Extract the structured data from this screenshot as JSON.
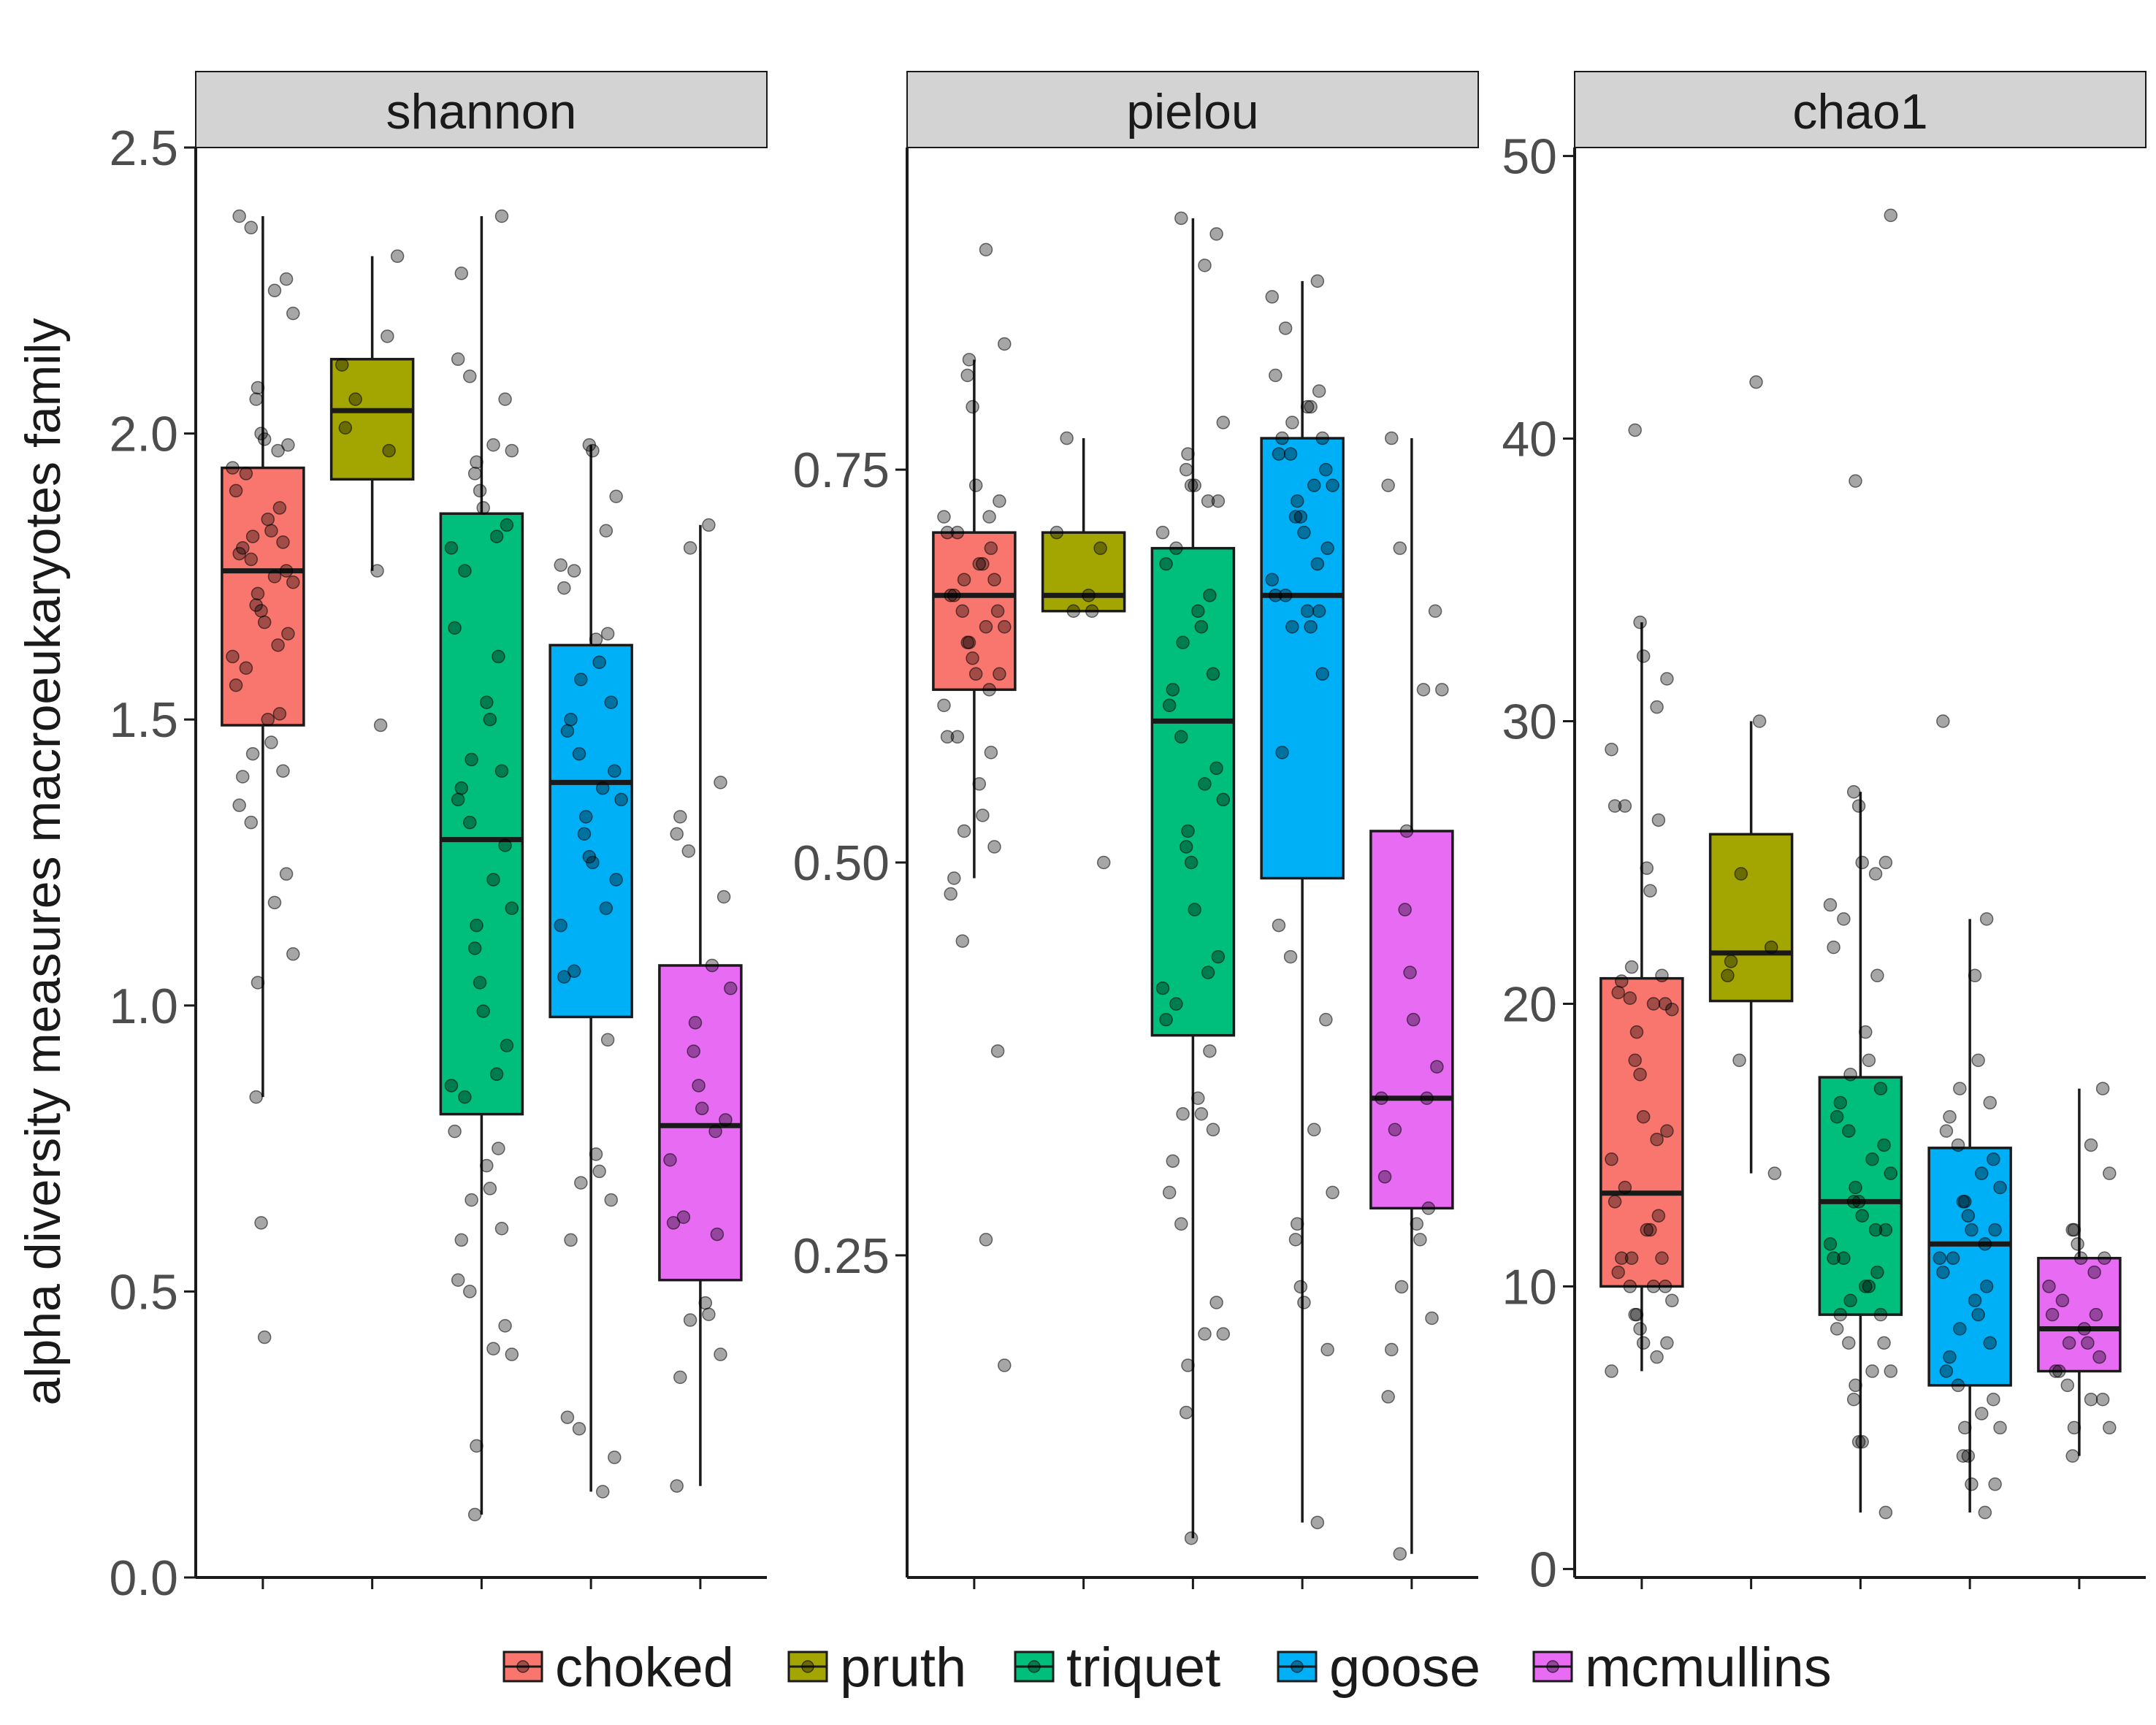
{
  "chart_data": {
    "type": "box",
    "ylabel": "alpha diversity measures macroeukaryotes family",
    "xlabel": "",
    "groups": [
      "choked",
      "pruth",
      "triquet",
      "goose",
      "mcmullins"
    ],
    "colors": {
      "choked": "#F8766D",
      "pruth": "#A3A500",
      "triquet": "#00BF7D",
      "goose": "#00B0F6",
      "mcmullins": "#E76BF3"
    },
    "legend": {
      "position": "bottom",
      "entries": [
        "choked",
        "pruth",
        "triquet",
        "goose",
        "mcmullins"
      ]
    },
    "grid": false,
    "facets": [
      {
        "name": "shannon",
        "ylim": [
          0,
          2.5
        ],
        "yticks": [
          0.0,
          0.5,
          1.0,
          1.5,
          2.0,
          2.5
        ],
        "ytick_labels": [
          "0.0",
          "0.5",
          "1.0",
          "1.5",
          "2.0",
          "2.5"
        ],
        "boxes": [
          {
            "group": "choked",
            "whisker_low": 0.84,
            "q1": 1.49,
            "median": 1.76,
            "q3": 1.94,
            "whisker_high": 2.38,
            "points": [
              2.38,
              2.36,
              2.27,
              2.25,
              2.21,
              2.08,
              2.06,
              2.0,
              1.99,
              1.98,
              1.97,
              1.94,
              1.93,
              1.9,
              1.87,
              1.85,
              1.83,
              1.82,
              1.81,
              1.8,
              1.79,
              1.78,
              1.76,
              1.75,
              1.74,
              1.72,
              1.7,
              1.69,
              1.67,
              1.65,
              1.63,
              1.61,
              1.59,
              1.56,
              1.51,
              1.5,
              1.46,
              1.44,
              1.41,
              1.4,
              1.35,
              1.32,
              1.23,
              1.18,
              1.09,
              1.04,
              0.84,
              0.62,
              0.42
            ]
          },
          {
            "group": "pruth",
            "whisker_low": 1.76,
            "q1": 1.92,
            "median": 2.04,
            "q3": 2.13,
            "whisker_high": 2.31,
            "points": [
              2.31,
              2.17,
              2.12,
              2.06,
              2.01,
              1.97,
              1.76,
              1.49
            ]
          },
          {
            "group": "triquet",
            "whisker_low": 0.11,
            "q1": 0.81,
            "median": 1.29,
            "q3": 1.86,
            "whisker_high": 2.38,
            "points": [
              2.38,
              2.28,
              2.13,
              2.1,
              2.06,
              1.98,
              1.97,
              1.95,
              1.93,
              1.9,
              1.87,
              1.84,
              1.82,
              1.8,
              1.76,
              1.66,
              1.61,
              1.53,
              1.5,
              1.43,
              1.41,
              1.38,
              1.36,
              1.32,
              1.28,
              1.22,
              1.17,
              1.14,
              1.1,
              1.04,
              0.99,
              0.93,
              0.88,
              0.86,
              0.84,
              0.78,
              0.75,
              0.72,
              0.68,
              0.66,
              0.61,
              0.59,
              0.52,
              0.5,
              0.44,
              0.4,
              0.39,
              0.23,
              0.11
            ]
          },
          {
            "group": "goose",
            "whisker_low": 0.15,
            "q1": 0.98,
            "median": 1.39,
            "q3": 1.63,
            "whisker_high": 1.98,
            "points": [
              1.98,
              1.97,
              1.89,
              1.83,
              1.77,
              1.76,
              1.73,
              1.65,
              1.64,
              1.6,
              1.57,
              1.53,
              1.5,
              1.48,
              1.44,
              1.41,
              1.38,
              1.36,
              1.33,
              1.3,
              1.26,
              1.25,
              1.22,
              1.17,
              1.14,
              1.06,
              1.05,
              0.94,
              0.74,
              0.71,
              0.69,
              0.66,
              0.59,
              0.28,
              0.26,
              0.21,
              0.15
            ]
          },
          {
            "group": "mcmullins",
            "whisker_low": 0.16,
            "q1": 0.52,
            "median": 0.79,
            "q3": 1.07,
            "whisker_high": 1.84,
            "points": [
              1.84,
              1.8,
              1.39,
              1.33,
              1.3,
              1.27,
              1.19,
              1.07,
              1.03,
              0.97,
              0.92,
              0.86,
              0.82,
              0.8,
              0.78,
              0.73,
              0.63,
              0.62,
              0.6,
              0.48,
              0.46,
              0.45,
              0.39,
              0.35,
              0.16
            ]
          }
        ]
      },
      {
        "name": "pielou",
        "ylim": [
          0.045,
          0.955
        ],
        "yticks": [
          0.25,
          0.5,
          0.75
        ],
        "ytick_labels": [
          "0.25",
          "0.50",
          "0.75"
        ],
        "boxes": [
          {
            "group": "choked",
            "whisker_low": 0.49,
            "q1": 0.61,
            "median": 0.67,
            "q3": 0.71,
            "whisker_high": 0.82,
            "points": [
              0.89,
              0.83,
              0.82,
              0.81,
              0.79,
              0.74,
              0.73,
              0.72,
              0.72,
              0.71,
              0.71,
              0.7,
              0.69,
              0.69,
              0.68,
              0.68,
              0.67,
              0.67,
              0.66,
              0.66,
              0.65,
              0.65,
              0.64,
              0.64,
              0.63,
              0.62,
              0.62,
              0.61,
              0.6,
              0.58,
              0.58,
              0.57,
              0.55,
              0.53,
              0.52,
              0.51,
              0.49,
              0.48,
              0.45,
              0.38,
              0.26,
              0.18
            ]
          },
          {
            "group": "pruth",
            "whisker_low": 0.66,
            "q1": 0.66,
            "median": 0.67,
            "q3": 0.71,
            "whisker_high": 0.77,
            "points": [
              0.77,
              0.71,
              0.7,
              0.67,
              0.66,
              0.66,
              0.5
            ]
          },
          {
            "group": "triquet",
            "whisker_low": 0.07,
            "q1": 0.39,
            "median": 0.59,
            "q3": 0.7,
            "whisker_high": 0.91,
            "points": [
              0.91,
              0.9,
              0.88,
              0.78,
              0.76,
              0.75,
              0.74,
              0.74,
              0.73,
              0.73,
              0.71,
              0.7,
              0.69,
              0.67,
              0.66,
              0.65,
              0.64,
              0.62,
              0.61,
              0.6,
              0.58,
              0.56,
              0.55,
              0.54,
              0.52,
              0.51,
              0.5,
              0.47,
              0.44,
              0.43,
              0.42,
              0.41,
              0.4,
              0.38,
              0.35,
              0.34,
              0.34,
              0.33,
              0.31,
              0.29,
              0.27,
              0.22,
              0.2,
              0.2,
              0.18,
              0.15,
              0.07
            ]
          },
          {
            "group": "goose",
            "whisker_low": 0.08,
            "q1": 0.49,
            "median": 0.67,
            "q3": 0.77,
            "whisker_high": 0.87,
            "points": [
              0.87,
              0.86,
              0.84,
              0.81,
              0.8,
              0.79,
              0.79,
              0.78,
              0.77,
              0.77,
              0.76,
              0.76,
              0.75,
              0.74,
              0.74,
              0.73,
              0.72,
              0.72,
              0.71,
              0.7,
              0.69,
              0.68,
              0.67,
              0.67,
              0.66,
              0.66,
              0.65,
              0.65,
              0.62,
              0.57,
              0.46,
              0.44,
              0.4,
              0.33,
              0.29,
              0.27,
              0.26,
              0.23,
              0.22,
              0.19,
              0.08
            ]
          },
          {
            "group": "mcmullins",
            "whisker_low": 0.06,
            "q1": 0.28,
            "median": 0.35,
            "q3": 0.52,
            "whisker_high": 0.77,
            "points": [
              0.77,
              0.74,
              0.7,
              0.66,
              0.61,
              0.61,
              0.52,
              0.47,
              0.43,
              0.4,
              0.37,
              0.35,
              0.35,
              0.33,
              0.3,
              0.28,
              0.27,
              0.26,
              0.23,
              0.21,
              0.19,
              0.16,
              0.06
            ]
          }
        ]
      },
      {
        "name": "chao1",
        "ylim": [
          -0.3,
          50.3
        ],
        "yticks": [
          0,
          10,
          20,
          30,
          40,
          50
        ],
        "ytick_labels": [
          "0",
          "10",
          "20",
          "30",
          "40",
          "50"
        ],
        "boxes": [
          {
            "group": "choked",
            "whisker_low": 7,
            "q1": 10,
            "median": 13.3,
            "q3": 20.9,
            "whisker_high": 33.5,
            "points": [
              40.3,
              33.5,
              32.3,
              31.5,
              30.5,
              29,
              27,
              27,
              26.5,
              24.8,
              24,
              21.3,
              21,
              20.8,
              20.4,
              20.2,
              20,
              20,
              19.8,
              19,
              18,
              17.5,
              16,
              15.5,
              15.2,
              14.5,
              13.5,
              13,
              12.5,
              12,
              12,
              11,
              11,
              11,
              10.5,
              10,
              10,
              10,
              9.5,
              9,
              9,
              8.5,
              8,
              8,
              7.5,
              7
            ]
          },
          {
            "group": "pruth",
            "whisker_low": 14,
            "q1": 20.1,
            "median": 21.8,
            "q3": 26,
            "whisker_high": 30,
            "points": [
              42,
              30,
              24.6,
              22,
              21.5,
              21,
              18,
              14
            ]
          },
          {
            "group": "triquet",
            "whisker_low": 2,
            "q1": 9,
            "median": 13,
            "q3": 17.4,
            "whisker_high": 27.5,
            "points": [
              47.9,
              38.5,
              27.5,
              27,
              25,
              25,
              24.6,
              23.5,
              23,
              22,
              21,
              19,
              18,
              17.5,
              17,
              16.5,
              16,
              15.5,
              15,
              14.5,
              14,
              13.5,
              13,
              13,
              12.5,
              12,
              12,
              11.5,
              11,
              11,
              10.5,
              10,
              10,
              9.5,
              9,
              9,
              8.5,
              8,
              8,
              7,
              7,
              6.5,
              6,
              4.5,
              4.5,
              2
            ]
          },
          {
            "group": "goose",
            "whisker_low": 2,
            "q1": 6.5,
            "median": 11.5,
            "q3": 14.9,
            "whisker_high": 23,
            "points": [
              30,
              23,
              21,
              18,
              17,
              16.5,
              16,
              15.5,
              15,
              14.5,
              14,
              13.5,
              13,
              13,
              12.5,
              12,
              12,
              11.5,
              11,
              11,
              10.5,
              10,
              9.5,
              9,
              8.5,
              8,
              7.5,
              7,
              6.5,
              6,
              5.5,
              5,
              5,
              4,
              4,
              3,
              3,
              2
            ]
          },
          {
            "group": "mcmullins",
            "whisker_low": 4,
            "q1": 7,
            "median": 8.5,
            "q3": 11,
            "whisker_high": 17,
            "points": [
              17,
              15,
              14,
              12,
              12,
              11.5,
              11,
              11,
              10.5,
              10,
              9.5,
              9,
              9,
              8.5,
              8,
              8,
              7.5,
              7,
              7,
              6.5,
              6,
              6,
              5,
              5,
              4
            ]
          }
        ]
      }
    ]
  }
}
